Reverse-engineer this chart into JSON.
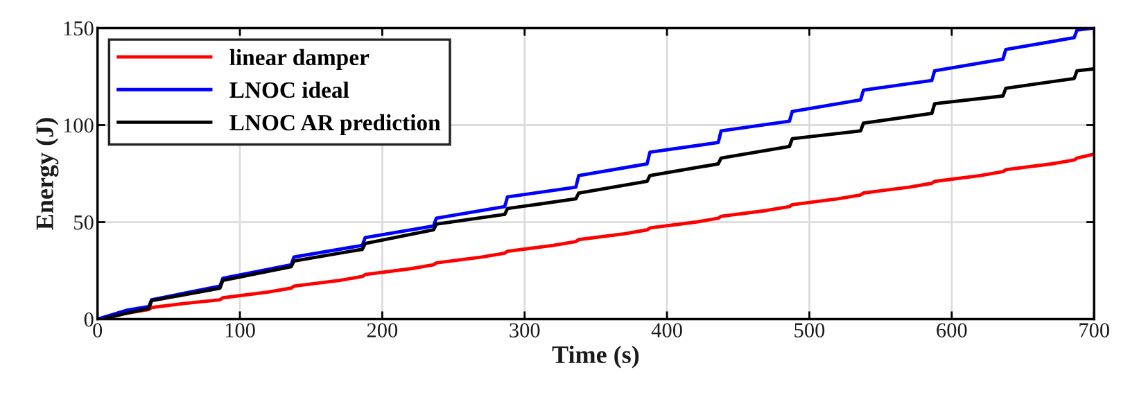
{
  "chart_data": {
    "type": "line",
    "xlabel": "Time (s)",
    "ylabel": "Energy (J)",
    "xlim": [
      0,
      700
    ],
    "ylim": [
      0,
      150
    ],
    "xticks": [
      0,
      100,
      200,
      300,
      400,
      500,
      600,
      700
    ],
    "yticks": [
      0,
      50,
      100,
      150
    ],
    "grid": true,
    "legend": "top left",
    "line_style": "solid",
    "marker": "none",
    "series": [
      {
        "name": "linear damper",
        "color": "#ff0000",
        "x": [
          0,
          20,
          36,
          38,
          60,
          86,
          88,
          120,
          136,
          138,
          170,
          186,
          188,
          220,
          236,
          238,
          270,
          286,
          288,
          320,
          336,
          338,
          370,
          386,
          388,
          420,
          436,
          438,
          470,
          486,
          488,
          520,
          536,
          538,
          570,
          586,
          588,
          620,
          636,
          638,
          670,
          686,
          688,
          700
        ],
        "values": [
          0,
          3,
          5,
          6,
          8,
          10,
          11,
          14,
          16,
          17,
          20,
          22,
          23,
          26,
          28,
          29,
          32,
          34,
          35,
          38,
          40,
          41,
          44,
          46,
          47,
          50,
          52,
          53,
          56,
          58,
          59,
          62,
          64,
          65,
          68,
          70,
          71,
          74,
          76,
          77,
          80,
          82,
          83,
          85
        ]
      },
      {
        "name": "LNOC ideal",
        "color": "#0000ff",
        "x": [
          0,
          20,
          36,
          38,
          86,
          88,
          136,
          138,
          186,
          188,
          236,
          238,
          286,
          288,
          336,
          338,
          386,
          388,
          436,
          438,
          486,
          488,
          536,
          538,
          586,
          588,
          636,
          638,
          686,
          688,
          700
        ],
        "values": [
          0,
          4.5,
          6.5,
          10,
          17,
          21,
          28,
          32,
          38,
          42,
          48,
          52,
          58,
          63,
          68,
          74,
          80,
          86,
          91,
          97,
          102,
          107,
          113,
          118,
          123,
          128,
          134,
          139,
          145,
          149,
          150
        ]
      },
      {
        "name": "LNOC AR prediction",
        "color": "#000000",
        "x": [
          6,
          20,
          36,
          38,
          86,
          88,
          136,
          138,
          186,
          188,
          236,
          238,
          286,
          288,
          336,
          338,
          386,
          388,
          436,
          438,
          486,
          488,
          536,
          538,
          586,
          588,
          636,
          638,
          686,
          688,
          700
        ],
        "values": [
          0.5,
          3,
          5.5,
          9.5,
          16,
          20,
          27,
          30,
          36,
          39,
          46,
          49,
          54,
          57,
          62,
          65,
          71,
          74,
          80,
          83,
          89,
          93,
          97,
          101,
          106,
          111,
          115,
          119,
          124,
          128,
          129
        ]
      }
    ]
  }
}
